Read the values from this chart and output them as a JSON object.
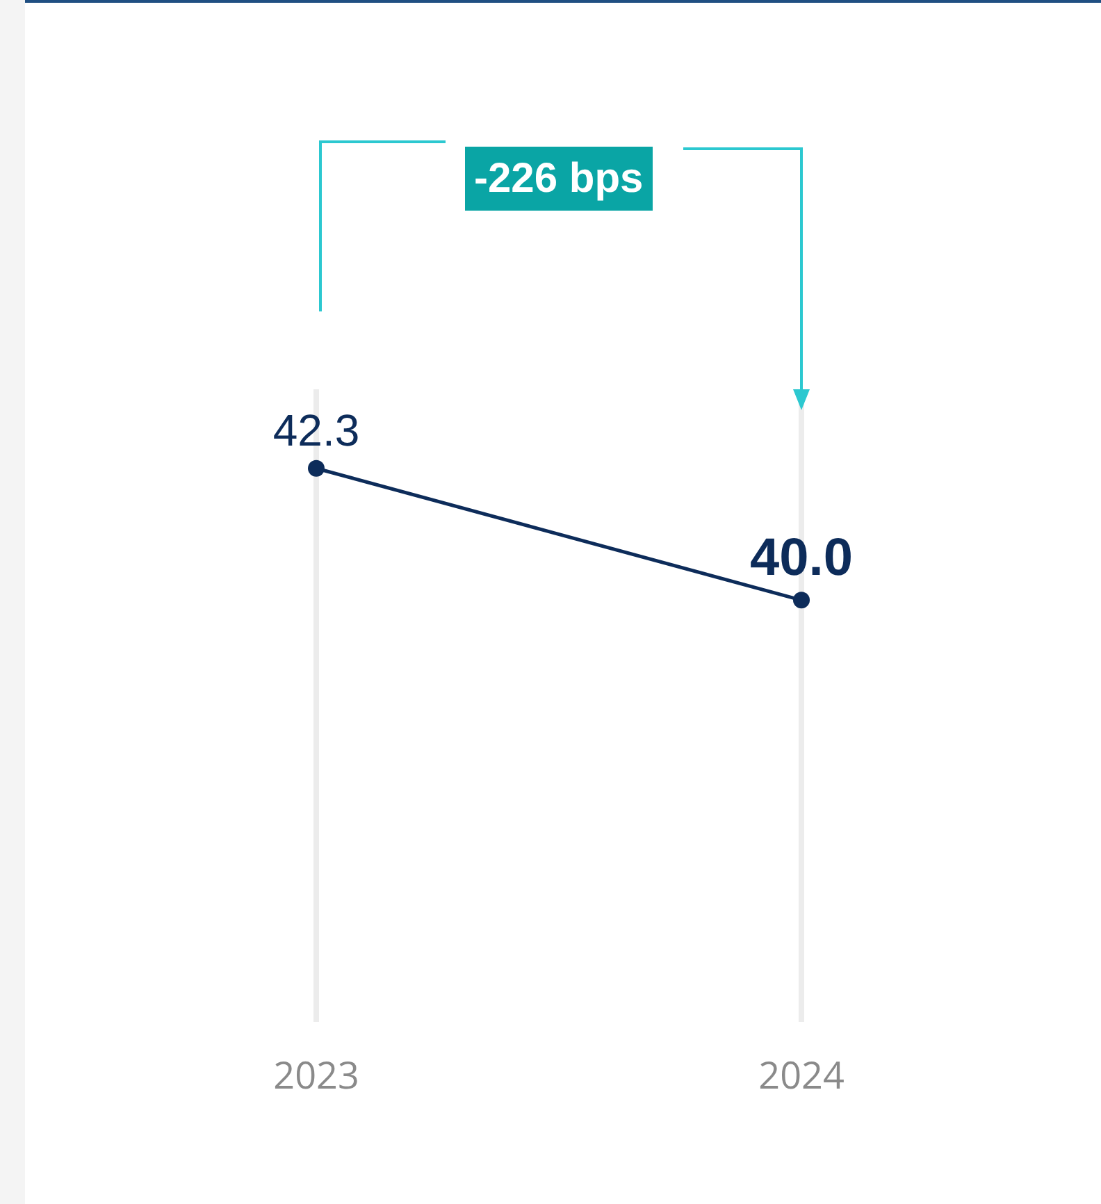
{
  "chart_data": {
    "type": "line",
    "categories": [
      "2023",
      "2024"
    ],
    "series": [
      {
        "color": "#0d2c5a",
        "values": [
          42.3,
          40.0
        ],
        "value_labels": [
          "42.3",
          "40.0"
        ]
      }
    ],
    "marker": "circle",
    "line_style": "solid",
    "grid": "x",
    "annotations": [
      "-226 bps"
    ]
  }
}
